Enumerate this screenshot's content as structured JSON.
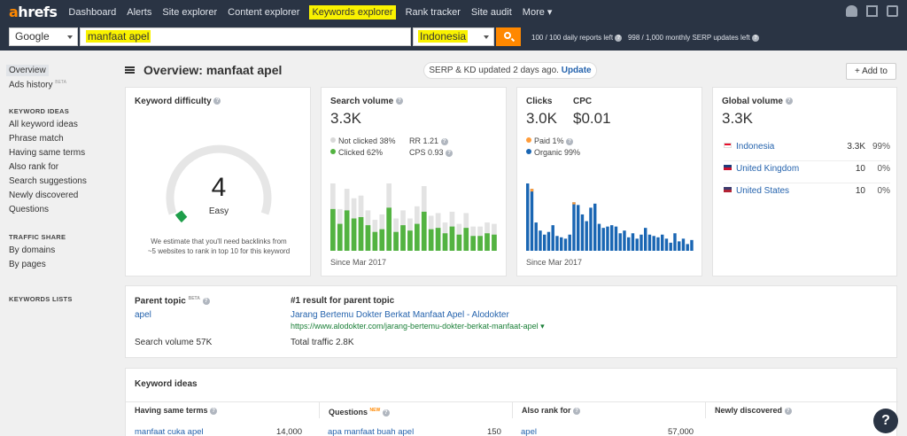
{
  "nav": {
    "logo_a": "a",
    "logo_rest": "hrefs",
    "items": [
      "Dashboard",
      "Alerts",
      "Site explorer",
      "Content explorer",
      "Keywords explorer",
      "Rank tracker",
      "Site audit",
      "More"
    ]
  },
  "search": {
    "engine": "Google",
    "keyword": "manfaat apel",
    "country": "Indonesia",
    "limit_reports": "100 / 100 daily reports left",
    "limit_serp": "998 / 1,000 monthly SERP updates left"
  },
  "sidebar": {
    "overview": "Overview",
    "ads_history": "Ads history",
    "beta": "BETA",
    "kw_ideas_head": "KEYWORD IDEAS",
    "kw_ideas": [
      "All keyword ideas",
      "Phrase match",
      "Having same terms",
      "Also rank for",
      "Search suggestions",
      "Newly discovered",
      "Questions"
    ],
    "traffic_head": "TRAFFIC SHARE",
    "traffic": [
      "By domains",
      "By pages"
    ],
    "lists_head": "KEYWORDS LISTS"
  },
  "header": {
    "title": "Overview: manfaat apel",
    "update_text": "SERP & KD updated 2 days ago.",
    "update_link": "Update",
    "add_to": "Add to"
  },
  "kd": {
    "title": "Keyword difficulty",
    "value": "4",
    "score": 4,
    "label": "Easy",
    "note_line1": "We estimate that you'll need backlinks from",
    "note_line2": "~5 websites to rank in top 10 for this keyword"
  },
  "sv": {
    "title": "Search volume",
    "value": "3.3K",
    "not_clicked": "Not clicked 38%",
    "clicked": "Clicked 62%",
    "rr": "RR 1.21",
    "cps": "CPS 0.93",
    "since": "Since Mar 2017",
    "bars_total": [
      100,
      62,
      92,
      78,
      82,
      60,
      46,
      54,
      100,
      48,
      60,
      48,
      66,
      96,
      52,
      56,
      42,
      58,
      40,
      56,
      36,
      36,
      42,
      40
    ],
    "bars_clicked": [
      62,
      40,
      60,
      48,
      50,
      38,
      28,
      32,
      64,
      28,
      38,
      30,
      40,
      58,
      32,
      34,
      26,
      36,
      24,
      34,
      22,
      22,
      26,
      24
    ]
  },
  "clicks": {
    "title": "Clicks",
    "value": "3.0K",
    "cpc_title": "CPC",
    "cpc_value": "$0.01",
    "paid": "Paid 1%",
    "organic": "Organic 99%",
    "since": "Since Mar 2017",
    "bars_total": [
      100,
      92,
      42,
      30,
      24,
      28,
      38,
      22,
      20,
      18,
      24,
      72,
      68,
      54,
      44,
      64,
      70,
      40,
      34,
      36,
      38,
      36,
      26,
      30,
      20,
      26,
      18,
      24,
      34,
      24,
      22,
      20,
      24,
      18,
      12,
      26,
      14,
      18,
      10,
      16
    ],
    "bars_paid": [
      0,
      4,
      0,
      0,
      0,
      0,
      0,
      0,
      0,
      0,
      0,
      3,
      0,
      0,
      0,
      0,
      0,
      0,
      0,
      0,
      0,
      0,
      0,
      0,
      0,
      0,
      0,
      0,
      0,
      0,
      0,
      0,
      0,
      0,
      0,
      0,
      0,
      0,
      0,
      0
    ]
  },
  "global": {
    "title": "Global volume",
    "value": "3.3K",
    "rows": [
      {
        "country": "Indonesia",
        "volume": "3.3K",
        "pct": "99%",
        "flag_top": "#e8112d",
        "flag_bottom": "#ffffff"
      },
      {
        "country": "United Kingdom",
        "volume": "10",
        "pct": "0%",
        "flag_top": "#1f3a7a",
        "flag_bottom": "#c8102e"
      },
      {
        "country": "United States",
        "volume": "10",
        "pct": "0%",
        "flag_top": "#3c3b6e",
        "flag_bottom": "#b22234"
      }
    ]
  },
  "parent": {
    "label": "Parent topic",
    "beta": "BETA",
    "topic": "apel",
    "sv_label": "Search volume 57K",
    "result_label": "#1 result for parent topic",
    "result_title": "Jarang Bertemu Dokter Berkat Manfaat Apel - Alodokter",
    "result_url": "https://www.alodokter.com/jarang-bertemu-dokter-berkat-manfaat-apel",
    "total_traffic": "Total traffic 2.8K"
  },
  "ideas": {
    "title": "Keyword ideas",
    "columns": [
      {
        "head": "Having same terms",
        "kw": "manfaat cuka apel",
        "num": "14,000"
      },
      {
        "head": "Questions",
        "badge": "NEW",
        "kw": "apa manfaat buah apel",
        "num": "150"
      },
      {
        "head": "Also rank for",
        "kw": "apel",
        "num": "57,000"
      },
      {
        "head": "Newly discovered",
        "kw": "",
        "num": ""
      }
    ]
  },
  "colors": {
    "nav_bg": "#2a3444",
    "accent": "#ff8800",
    "highlight": "#f9f200",
    "link": "#2563ad",
    "green": "#53b341",
    "green_light": "#e3e3e3",
    "blue": "#1a66b3",
    "orange": "#ff9c3a"
  }
}
